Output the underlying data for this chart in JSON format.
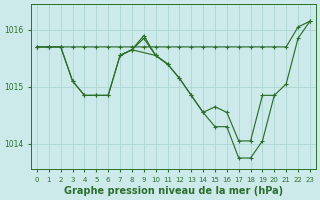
{
  "bg_color": "#cdeaea",
  "grid_color": "#add4d4",
  "line_color": "#2d6e2d",
  "title": "Graphe pression niveau de la mer (hPa)",
  "title_fontsize": 7,
  "xlim": [
    -0.5,
    23.5
  ],
  "ylim": [
    1013.55,
    1016.45
  ],
  "yticks": [
    1014,
    1015,
    1016
  ],
  "xticks": [
    0,
    1,
    2,
    3,
    4,
    5,
    6,
    7,
    8,
    9,
    10,
    11,
    12,
    13,
    14,
    15,
    16,
    17,
    18,
    19,
    20,
    21,
    22,
    23
  ],
  "series": [
    {
      "x": [
        0,
        1,
        2,
        3,
        4,
        5,
        6,
        7,
        8,
        9,
        10,
        11,
        12,
        13,
        14,
        15,
        16,
        17,
        18,
        19,
        20,
        21,
        22,
        23
      ],
      "y": [
        1015.7,
        1015.7,
        1015.7,
        1015.7,
        1015.7,
        1015.7,
        1015.7,
        1015.7,
        1015.7,
        1015.7,
        1015.7,
        1015.7,
        1015.7,
        1015.7,
        1015.7,
        1015.7,
        1015.7,
        1015.7,
        1015.7,
        1015.7,
        1015.7,
        1015.7,
        1016.05,
        1016.15
      ]
    },
    {
      "x": [
        0,
        1,
        2,
        3,
        4,
        5,
        6,
        7,
        8,
        10,
        11,
        12,
        13,
        14,
        15,
        16,
        17,
        18,
        19,
        20,
        21,
        22,
        23
      ],
      "y": [
        1015.7,
        1015.7,
        1015.7,
        1015.1,
        1014.85,
        1014.85,
        1014.85,
        1015.55,
        1015.65,
        1015.55,
        1015.4,
        1015.15,
        1014.85,
        1014.55,
        1014.65,
        1014.55,
        1014.05,
        1014.05,
        1014.85,
        1014.85,
        1015.05,
        1015.85,
        1016.15
      ]
    },
    {
      "x": [
        0,
        1,
        2,
        3,
        4,
        5,
        6,
        7,
        8,
        9,
        10,
        11
      ],
      "y": [
        1015.7,
        1015.7,
        1015.7,
        1015.1,
        1014.85,
        1014.85,
        1014.85,
        1015.55,
        1015.65,
        1015.85,
        1015.55,
        1015.4
      ]
    },
    {
      "x": [
        7,
        8,
        9,
        10,
        11,
        12,
        13,
        14,
        15,
        16,
        17,
        18,
        19,
        20
      ],
      "y": [
        1015.55,
        1015.65,
        1015.9,
        1015.55,
        1015.4,
        1015.15,
        1014.85,
        1014.55,
        1014.3,
        1014.3,
        1013.75,
        1013.75,
        1014.05,
        1014.85
      ]
    }
  ]
}
